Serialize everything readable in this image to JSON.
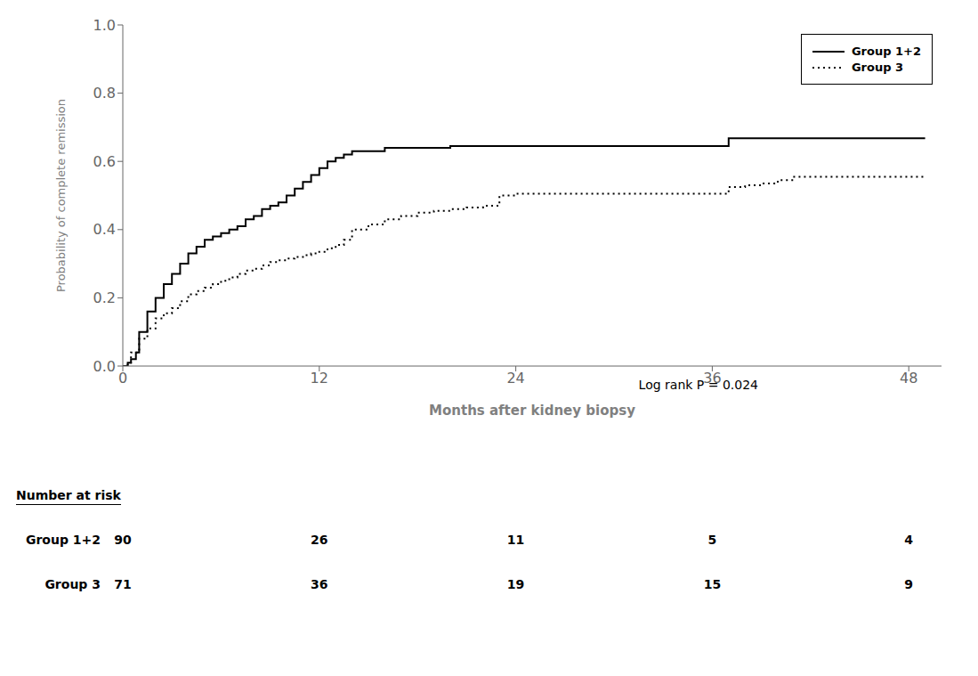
{
  "chart_data": {
    "type": "step",
    "ylabel": "Probability of complete remission",
    "xlabel": "Months after kidney biopsy",
    "xlim": [
      0,
      50
    ],
    "ylim": [
      0,
      1.0
    ],
    "xticks": [
      0,
      12,
      24,
      36,
      48
    ],
    "yticks": [
      {
        "value": 0.0,
        "label": "0.0"
      },
      0.2,
      0.4,
      0.6,
      0.8,
      {
        "value": 1.0,
        "label": "1.0"
      }
    ],
    "grid": false,
    "legend": "upper right",
    "annotation": "Log rank P = 0.024",
    "series": [
      {
        "name": "Group 1+2",
        "color": "#000000",
        "line_style": "solid",
        "x": [
          0,
          0.3,
          0.5,
          0.8,
          1.0,
          1.5,
          2.0,
          2.5,
          3.0,
          3.5,
          4.0,
          4.5,
          5.0,
          5.5,
          6.0,
          6.5,
          7.0,
          7.5,
          8.0,
          8.5,
          9.0,
          9.5,
          10.0,
          10.5,
          11.0,
          11.5,
          12.0,
          12.5,
          13.0,
          13.5,
          14.0,
          15.0,
          16.0,
          17.0,
          18.0,
          19.0,
          20.0,
          21.0,
          22.0,
          23.0,
          24.0,
          25.0,
          26.0,
          27.0,
          28.0,
          29.0,
          30.0,
          31.0,
          32.0,
          33.0,
          34.0,
          35.0,
          36.0,
          37.0,
          38.0,
          39.0,
          40.0,
          41.0,
          42.0,
          43.0,
          44.0,
          45.0,
          46.0,
          47.0,
          48.0,
          49.0
        ],
        "values": [
          0,
          0.01,
          0.02,
          0.04,
          0.1,
          0.16,
          0.2,
          0.24,
          0.27,
          0.3,
          0.33,
          0.35,
          0.37,
          0.38,
          0.39,
          0.4,
          0.41,
          0.43,
          0.44,
          0.46,
          0.47,
          0.48,
          0.5,
          0.52,
          0.54,
          0.56,
          0.58,
          0.6,
          0.61,
          0.62,
          0.63,
          0.63,
          0.64,
          0.64,
          0.64,
          0.64,
          0.645,
          0.645,
          0.645,
          0.645,
          0.645,
          0.645,
          0.645,
          0.645,
          0.645,
          0.645,
          0.645,
          0.645,
          0.645,
          0.645,
          0.645,
          0.645,
          0.645,
          0.668,
          0.668,
          0.668,
          0.668,
          0.668,
          0.668,
          0.668,
          0.668,
          0.668,
          0.668,
          0.668,
          0.668,
          0.668
        ]
      },
      {
        "name": "Group 3",
        "color": "#000000",
        "line_style": "dotted",
        "x": [
          0,
          0.3,
          0.5,
          1.0,
          1.5,
          2.0,
          2.5,
          3.0,
          3.5,
          4.0,
          4.5,
          5.0,
          5.5,
          6.0,
          6.5,
          7.0,
          7.5,
          8.0,
          8.5,
          9.0,
          9.5,
          10.0,
          10.5,
          11.0,
          11.5,
          12.0,
          12.5,
          13.0,
          13.5,
          14.0,
          15.0,
          16.0,
          17.0,
          18.0,
          19.0,
          20.0,
          21.0,
          22.0,
          23.0,
          24.0,
          25.0,
          26.0,
          27.0,
          28.0,
          29.0,
          30.0,
          31.0,
          32.0,
          33.0,
          34.0,
          35.0,
          36.0,
          37.0,
          38.0,
          39.0,
          40.0,
          41.0,
          42.0,
          43.0,
          44.0,
          45.0,
          46.0,
          47.0,
          48.0,
          49.0
        ],
        "values": [
          0,
          0.01,
          0.04,
          0.08,
          0.11,
          0.14,
          0.155,
          0.17,
          0.19,
          0.21,
          0.22,
          0.23,
          0.24,
          0.25,
          0.26,
          0.27,
          0.28,
          0.285,
          0.295,
          0.305,
          0.31,
          0.315,
          0.32,
          0.325,
          0.33,
          0.335,
          0.345,
          0.355,
          0.37,
          0.4,
          0.415,
          0.43,
          0.44,
          0.45,
          0.455,
          0.46,
          0.465,
          0.47,
          0.5,
          0.505,
          0.505,
          0.505,
          0.505,
          0.505,
          0.505,
          0.505,
          0.505,
          0.505,
          0.505,
          0.505,
          0.505,
          0.505,
          0.525,
          0.53,
          0.535,
          0.545,
          0.555,
          0.555,
          0.555,
          0.555,
          0.555,
          0.555,
          0.555,
          0.555,
          0.555
        ]
      }
    ],
    "risk_table": {
      "title": "Number at risk",
      "x": [
        0,
        12,
        24,
        36,
        48
      ],
      "rows": [
        {
          "name": "Group 1+2",
          "values": [
            90,
            26,
            11,
            5,
            4
          ]
        },
        {
          "name": "Group 3",
          "values": [
            71,
            36,
            19,
            15,
            9
          ]
        }
      ]
    }
  }
}
